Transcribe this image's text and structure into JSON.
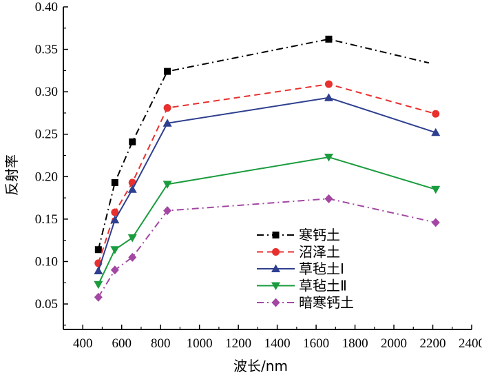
{
  "chart_data": {
    "type": "line",
    "xlabel": "波长/nm",
    "ylabel": "反射率",
    "xlim": [
      300,
      2400
    ],
    "ylim": [
      0.02,
      0.4
    ],
    "xticks": [
      "400",
      "600",
      "800",
      "1000",
      "1200",
      "1400",
      "1600",
      "1800",
      "2000",
      "2200",
      "2400"
    ],
    "xtick_values": [
      400,
      600,
      800,
      1000,
      1200,
      1400,
      1600,
      1800,
      2000,
      2200,
      2400
    ],
    "yticks": [
      "0.05",
      "0.10",
      "0.15",
      "0.20",
      "0.25",
      "0.30",
      "0.35",
      "0.40"
    ],
    "ytick_values": [
      0.05,
      0.1,
      0.15,
      0.2,
      0.25,
      0.3,
      0.35,
      0.4
    ],
    "legend_position": "lower-right",
    "series": [
      {
        "name": "寒钙土",
        "color": "#000000",
        "marker": "square",
        "dash": "dash-dot",
        "points": [
          [
            480,
            0.114
          ],
          [
            565,
            0.193
          ],
          [
            655,
            0.241
          ],
          [
            835,
            0.324
          ],
          [
            1665,
            0.362
          ]
        ],
        "tail_line_to": [
          2180,
          0.334
        ]
      },
      {
        "name": "沼泽土",
        "color": "#e8302e",
        "marker": "circle",
        "dash": "dash",
        "points": [
          [
            480,
            0.098
          ],
          [
            565,
            0.158
          ],
          [
            655,
            0.193
          ],
          [
            835,
            0.281
          ],
          [
            1665,
            0.309
          ],
          [
            2215,
            0.274
          ]
        ]
      },
      {
        "name": "草毡土Ⅰ",
        "color": "#2e3f8f",
        "marker": "triangle-up",
        "dash": "solid",
        "points": [
          [
            480,
            0.089
          ],
          [
            565,
            0.149
          ],
          [
            655,
            0.185
          ],
          [
            835,
            0.263
          ],
          [
            1665,
            0.293
          ],
          [
            2215,
            0.252
          ]
        ]
      },
      {
        "name": "草毡土Ⅱ",
        "color": "#1a9c3e",
        "marker": "triangle-down",
        "dash": "solid",
        "points": [
          [
            480,
            0.073
          ],
          [
            565,
            0.114
          ],
          [
            655,
            0.128
          ],
          [
            835,
            0.191
          ],
          [
            1665,
            0.223
          ],
          [
            2215,
            0.185
          ]
        ]
      },
      {
        "name": "暗寒钙土",
        "color": "#a347a3",
        "marker": "diamond",
        "dash": "dash-dot",
        "points": [
          [
            480,
            0.058
          ],
          [
            565,
            0.09
          ],
          [
            655,
            0.105
          ],
          [
            835,
            0.16
          ],
          [
            1665,
            0.174
          ],
          [
            2215,
            0.146
          ]
        ]
      }
    ]
  }
}
